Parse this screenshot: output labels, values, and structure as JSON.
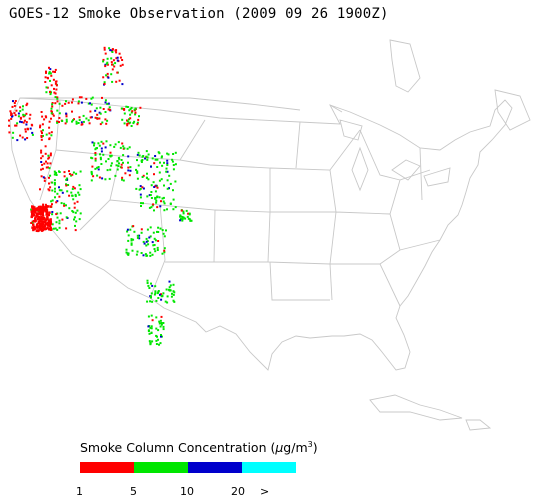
{
  "title": "GOES-12 Smoke Observation (2009 09 26  1900Z)",
  "legend": {
    "title_prefix": "Smoke Column Concentration (",
    "unit_mu": "μ",
    "unit_rest": "g/m",
    "unit_sup": "3",
    "title_suffix": ")",
    "colors": [
      "#ff0000",
      "#00e600",
      "#0000cc",
      "#00ffff"
    ],
    "ticks": [
      "1",
      "5",
      "10",
      "20",
      ">"
    ]
  },
  "map": {
    "boundary_color": "#c8c8c8",
    "smoke_colors": {
      "low": "#ff0000",
      "mid": "#00e600",
      "high": "#0000cc",
      "highest": "#00ffff"
    }
  }
}
